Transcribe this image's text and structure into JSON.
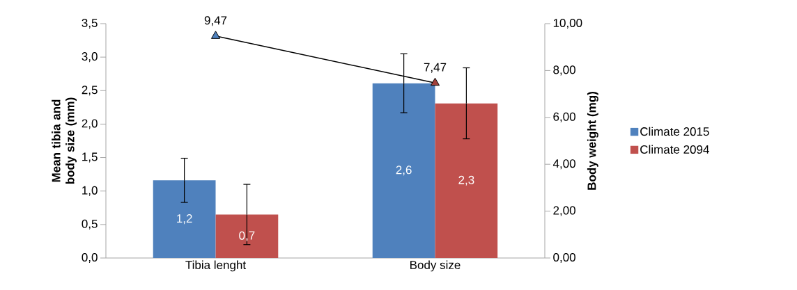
{
  "chart_data": {
    "type": "bar",
    "categories": [
      "Tibia lenght",
      "Body size"
    ],
    "ylabel": "Mean tibia and body size (mm)",
    "y2label": "Body weight (mg)",
    "ylim": [
      0,
      3.5
    ],
    "yticks": [
      {
        "value": 0,
        "label": "0,0"
      },
      {
        "value": 0.5,
        "label": "0,5"
      },
      {
        "value": 1,
        "label": "1,0"
      },
      {
        "value": 1.5,
        "label": "1,5"
      },
      {
        "value": 2,
        "label": "2,0"
      },
      {
        "value": 2.5,
        "label": "2,5"
      },
      {
        "value": 3,
        "label": "3,0"
      },
      {
        "value": 3.5,
        "label": "3,5"
      }
    ],
    "y2lim": [
      0,
      10
    ],
    "y2ticks": [
      {
        "value": 0,
        "label": "0,00"
      },
      {
        "value": 2,
        "label": "2,00"
      },
      {
        "value": 4,
        "label": "4,00"
      },
      {
        "value": 6,
        "label": "6,00"
      },
      {
        "value": 8,
        "label": "8,00"
      },
      {
        "value": 10,
        "label": "10,00"
      }
    ],
    "legend": "right",
    "grid": false,
    "series": [
      {
        "name": "Climate 2015",
        "color": "#4f81bd",
        "values": [
          1.16,
          2.61
        ],
        "errors": [
          0.33,
          0.44
        ],
        "value_labels": [
          "1,2",
          "2,6"
        ]
      },
      {
        "name": "Climate 2094",
        "color": "#c0504d",
        "values": [
          0.65,
          2.31
        ],
        "errors": [
          0.45,
          0.53
        ],
        "value_labels": [
          "0,7",
          "2,3"
        ]
      },
      {
        "type": "line",
        "axis": "y2",
        "color": "#000000",
        "colors": [
          "#4f81bd",
          "#a0403c"
        ],
        "marker": "triangle",
        "values": [
          9.47,
          7.47
        ],
        "value_labels": [
          "9,47",
          "7,47"
        ]
      }
    ]
  }
}
